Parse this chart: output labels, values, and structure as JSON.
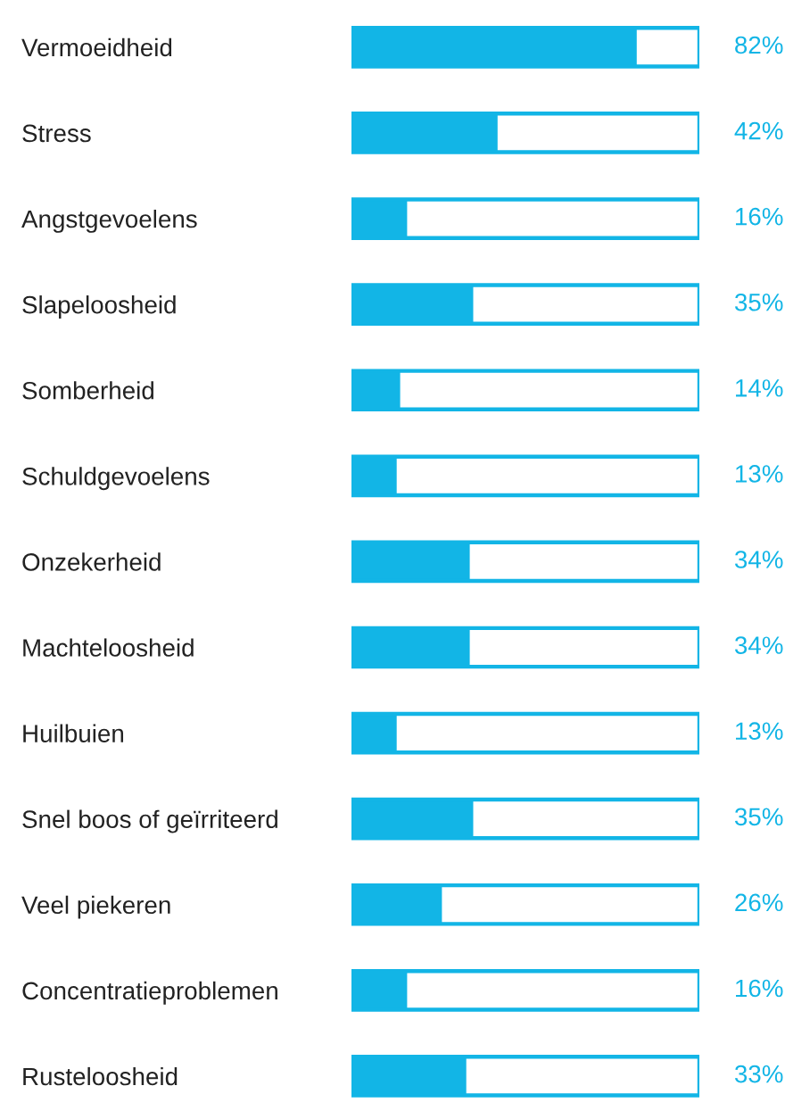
{
  "chart_data": {
    "type": "bar",
    "orientation": "horizontal",
    "categories": [
      "Vermoeidheid",
      "Stress",
      "Angstgevoelens",
      "Slapeloosheid",
      "Somberheid",
      "Schuldgevoelens",
      "Onzekerheid",
      "Machteloosheid",
      "Huilbuien",
      "Snel boos of geïrriteerd",
      "Veel piekeren",
      "Concentratieproblemen",
      "Rusteloosheid"
    ],
    "series": [
      {
        "color": "#12b5e6",
        "values": [
          82,
          42,
          16,
          35,
          14,
          13,
          34,
          34,
          13,
          35,
          26,
          16,
          33
        ],
        "value_labels": [
          "82%",
          "42%",
          "16%",
          "35%",
          "14%",
          "13%",
          "34%",
          "34%",
          "13%",
          "35%",
          "26%",
          "16%",
          "33%"
        ]
      },
      {
        "color": "#12b5e6",
        "values": [
          100,
          100,
          100,
          100,
          100,
          100,
          100,
          100,
          100,
          100,
          100,
          100,
          100
        ]
      }
    ],
    "xlim": [
      0,
      100
    ],
    "tick_labels": "y"
  }
}
